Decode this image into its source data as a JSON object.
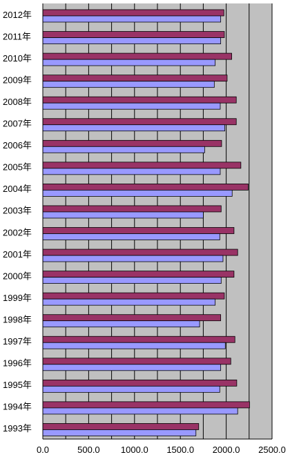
{
  "chart_data": {
    "type": "bar",
    "orientation": "horizontal",
    "categories": [
      "2012年",
      "2011年",
      "2010年",
      "2009年",
      "2008年",
      "2007年",
      "2006年",
      "2005年",
      "2004年",
      "2003年",
      "2002年",
      "2001年",
      "2000年",
      "1999年",
      "1998年",
      "1997年",
      "1996年",
      "1995年",
      "1994年",
      "1993年"
    ],
    "series": [
      {
        "values": [
          1975,
          1980,
          2060,
          2010,
          2110,
          2110,
          1950,
          2160,
          2240,
          1945,
          2085,
          2125,
          2085,
          1980,
          1940,
          2095,
          2050,
          2115,
          2255,
          1700
        ]
      },
      {
        "values": [
          1940,
          1940,
          1880,
          1870,
          1935,
          1985,
          1765,
          1935,
          2065,
          1750,
          1930,
          1965,
          1945,
          1880,
          1710,
          1990,
          1940,
          1930,
          2125,
          1670
        ]
      }
    ],
    "xlim": [
      0,
      2500
    ],
    "x_ticks": [
      "0.0",
      "500.0",
      "1000.0",
      "1500.0",
      "2000.0",
      "2500.0"
    ],
    "grid": true,
    "colors": {
      "plot_background": "#c0c0c0",
      "series_1": "#993366",
      "series_2": "#9999ff",
      "gridline": "#000000"
    }
  }
}
